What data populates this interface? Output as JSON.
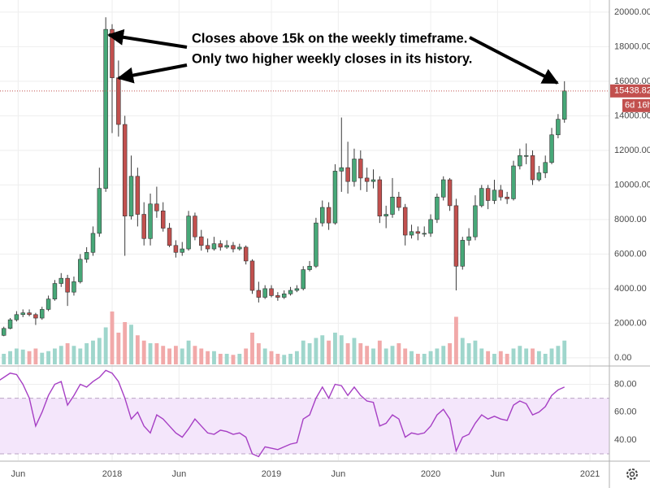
{
  "chart_data": {
    "type": "candlestick",
    "annotations": [
      "Closes above 15k on the weekly timeframe.",
      "Only two higher weekly closes in its history."
    ],
    "countdown": "6d 16h",
    "x": [
      2017.28,
      2017.32,
      2017.36,
      2017.4,
      2017.44,
      2017.48,
      2017.52,
      2017.56,
      2017.6,
      2017.64,
      2017.68,
      2017.72,
      2017.76,
      2017.8,
      2017.84,
      2017.88,
      2017.92,
      2017.96,
      2018.0,
      2018.04,
      2018.08,
      2018.12,
      2018.16,
      2018.2,
      2018.24,
      2018.28,
      2018.32,
      2018.36,
      2018.4,
      2018.44,
      2018.48,
      2018.52,
      2018.56,
      2018.6,
      2018.64,
      2018.68,
      2018.72,
      2018.76,
      2018.8,
      2018.84,
      2018.88,
      2018.92,
      2018.96,
      2019.0,
      2019.04,
      2019.08,
      2019.12,
      2019.16,
      2019.2,
      2019.24,
      2019.28,
      2019.32,
      2019.36,
      2019.4,
      2019.44,
      2019.48,
      2019.52,
      2019.56,
      2019.6,
      2019.64,
      2019.68,
      2019.72,
      2019.76,
      2019.8,
      2019.84,
      2019.88,
      2019.92,
      2019.96,
      2020.0,
      2020.04,
      2020.08,
      2020.12,
      2020.16,
      2020.2,
      2020.24,
      2020.28,
      2020.32,
      2020.36,
      2020.4,
      2020.44,
      2020.48,
      2020.52,
      2020.56,
      2020.6,
      2020.64,
      2020.68,
      2020.72,
      2020.76,
      2020.8,
      2020.84
    ],
    "open": [
      1200,
      1300,
      1700,
      2200,
      2500,
      2600,
      2500,
      2300,
      2800,
      3400,
      4300,
      4600,
      3800,
      4400,
      5700,
      6100,
      7200,
      9800,
      19000,
      16200,
      13500,
      8200,
      10500,
      8300,
      6900,
      8900,
      8500,
      7500,
      6500,
      6100,
      6300,
      8200,
      7000,
      6500,
      6300,
      6600,
      6400,
      6500,
      6300,
      6400,
      5600,
      3900,
      3500,
      4000,
      3600,
      3500,
      3700,
      3900,
      4000,
      5100,
      5300,
      7800,
      8700,
      7800,
      10800,
      11000,
      10200,
      11500,
      10400,
      10200,
      10300,
      8200,
      8300,
      9300,
      8700,
      7100,
      7300,
      7200,
      7200,
      8000,
      9300,
      10300,
      8800,
      5300,
      6800,
      7000,
      8800,
      9800,
      9100,
      9700,
      9300,
      9200,
      11100,
      11700,
      11700,
      10300,
      10700,
      11300,
      12900,
      13800
    ],
    "high": [
      1400,
      1800,
      2300,
      2700,
      2800,
      2800,
      2600,
      2950,
      3600,
      4500,
      4900,
      4800,
      4700,
      6000,
      6400,
      7600,
      11000,
      19700,
      19300,
      17200,
      14000,
      11700,
      11000,
      9000,
      9500,
      9900,
      9000,
      7800,
      6800,
      6700,
      8500,
      8400,
      7400,
      6900,
      7000,
      6800,
      6800,
      6700,
      6600,
      6500,
      5700,
      4400,
      4200,
      4200,
      3800,
      3900,
      4100,
      4200,
      5300,
      5600,
      8100,
      9100,
      9000,
      11200,
      13900,
      12500,
      12100,
      12000,
      11000,
      10900,
      10500,
      8800,
      10400,
      9600,
      8900,
      7700,
      7600,
      7600,
      8300,
      9500,
      10500,
      10400,
      9200,
      7000,
      7500,
      9400,
      10000,
      10000,
      10300,
      10000,
      9600,
      11400,
      12100,
      12400,
      12000,
      11100,
      11700,
      13300,
      14100,
      16000
    ],
    "low": [
      1100,
      1250,
      1650,
      2100,
      2350,
      2400,
      1900,
      2200,
      2700,
      3300,
      4100,
      3000,
      3600,
      4300,
      5500,
      5900,
      7000,
      9600,
      13000,
      12800,
      5900,
      8000,
      7600,
      6500,
      6500,
      8100,
      7300,
      6400,
      5800,
      5900,
      6200,
      6800,
      6200,
      6100,
      6200,
      6200,
      6300,
      6100,
      6200,
      5400,
      3700,
      3200,
      3400,
      3500,
      3300,
      3400,
      3600,
      3800,
      3900,
      5000,
      5200,
      7600,
      7400,
      7700,
      9600,
      9500,
      9900,
      9700,
      9600,
      9800,
      7800,
      7500,
      8100,
      8500,
      6500,
      6900,
      6800,
      7000,
      7000,
      7800,
      9100,
      8500,
      3900,
      5100,
      6500,
      6800,
      8700,
      8600,
      8900,
      9100,
      8900,
      9100,
      10900,
      11200,
      10000,
      10200,
      10400,
      11200,
      12700,
      13600
    ],
    "close": [
      1300,
      1700,
      2200,
      2500,
      2600,
      2500,
      2300,
      2800,
      3400,
      4300,
      4600,
      3800,
      4400,
      5700,
      6100,
      7200,
      9800,
      19000,
      16200,
      13500,
      8200,
      10500,
      8300,
      6900,
      8900,
      8500,
      7500,
      6500,
      6100,
      6300,
      8200,
      7000,
      6500,
      6300,
      6600,
      6400,
      6500,
      6300,
      6400,
      5600,
      3900,
      3500,
      4000,
      3600,
      3500,
      3700,
      3900,
      4000,
      5100,
      5300,
      7800,
      8700,
      7800,
      10800,
      11000,
      10200,
      11500,
      10400,
      10200,
      10300,
      8200,
      8300,
      9300,
      8700,
      7100,
      7300,
      7200,
      7200,
      8000,
      9300,
      10300,
      8800,
      5300,
      6800,
      7000,
      8800,
      9800,
      9100,
      9700,
      9300,
      9200,
      11100,
      11700,
      11700,
      10300,
      10700,
      11300,
      12900,
      13800,
      15438.82
    ],
    "volume": [
      15,
      20,
      25,
      30,
      28,
      25,
      30,
      22,
      25,
      30,
      35,
      40,
      35,
      30,
      40,
      45,
      50,
      70,
      100,
      60,
      80,
      75,
      55,
      45,
      40,
      40,
      35,
      30,
      35,
      30,
      45,
      35,
      30,
      25,
      25,
      20,
      20,
      18,
      20,
      30,
      60,
      40,
      30,
      25,
      20,
      18,
      20,
      25,
      45,
      40,
      50,
      55,
      45,
      60,
      55,
      40,
      50,
      40,
      35,
      30,
      45,
      30,
      35,
      40,
      30,
      25,
      20,
      20,
      25,
      30,
      35,
      40,
      90,
      50,
      40,
      45,
      30,
      25,
      20,
      25,
      20,
      30,
      35,
      30,
      30,
      25,
      20,
      30,
      35,
      45
    ],
    "up_color": "#47a878",
    "down_color": "#c2504e",
    "volume_up_color": "#9fd6cc",
    "volume_down_color": "#f1a9a9",
    "ylim": [
      -380,
      20700
    ],
    "yticks": [
      {
        "value": 0,
        "label": "0.00"
      },
      {
        "value": 2000,
        "label": "2000.00"
      },
      {
        "value": 4000,
        "label": "4000.00"
      },
      {
        "value": 6000,
        "label": "6000.00"
      },
      {
        "value": 8000,
        "label": "8000.00"
      },
      {
        "value": 10000,
        "label": "10000.00"
      },
      {
        "value": 12000,
        "label": "12000.00"
      },
      {
        "value": 14000,
        "label": "14000.00"
      },
      {
        "value": 16000,
        "label": "16000.00"
      },
      {
        "value": 18000,
        "label": "18000.00"
      },
      {
        "value": 20000,
        "label": "20000.00"
      }
    ],
    "xlim": [
      2017.296,
      2021.122
    ],
    "xticks": [
      {
        "value": 2017.41,
        "label": "Jun"
      },
      {
        "value": 2018,
        "label": "2018"
      },
      {
        "value": 2018.42,
        "label": "Jun"
      },
      {
        "value": 2019,
        "label": "2019"
      },
      {
        "value": 2019.42,
        "label": "Jun"
      },
      {
        "value": 2020,
        "label": "2020"
      },
      {
        "value": 2020.42,
        "label": "Jun"
      },
      {
        "value": 2021,
        "label": "2021"
      }
    ],
    "grid": true,
    "rsi": {
      "values": [
        82,
        85,
        88,
        87,
        80,
        70,
        50,
        60,
        72,
        80,
        82,
        65,
        72,
        80,
        78,
        82,
        85,
        90,
        88,
        82,
        70,
        55,
        60,
        50,
        45,
        58,
        55,
        50,
        45,
        42,
        48,
        55,
        50,
        45,
        44,
        47,
        46,
        44,
        45,
        42,
        30,
        28,
        35,
        34,
        33,
        35,
        37,
        38,
        55,
        58,
        70,
        78,
        70,
        80,
        79,
        72,
        78,
        72,
        68,
        67,
        50,
        52,
        58,
        55,
        42,
        45,
        44,
        45,
        50,
        58,
        62,
        55,
        32,
        42,
        44,
        52,
        58,
        55,
        57,
        55,
        54,
        65,
        68,
        66,
        58,
        60,
        64,
        72,
        76,
        78
      ],
      "color": "#a63fc4",
      "band": [
        30,
        70
      ],
      "band_color": "#f4e6fb",
      "ylim": [
        25.3,
        92
      ],
      "yticks": [
        {
          "value": 40,
          "label": "40.00"
        },
        {
          "value": 60,
          "label": "60.00"
        },
        {
          "value": 80,
          "label": "80.00"
        }
      ]
    }
  }
}
